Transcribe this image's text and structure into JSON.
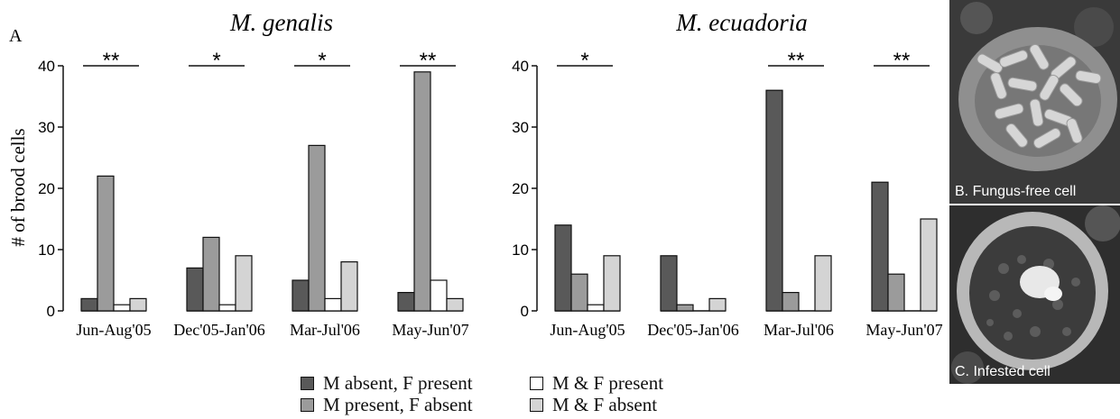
{
  "panel_label": "A",
  "ylabel": "# of brood cells",
  "colors": {
    "M absent, F present": "#595959",
    "M present, F absent": "#9b9b9b",
    "M & F present": "#ffffff",
    "M & F absent": "#d4d4d4"
  },
  "legend": [
    {
      "label": "M absent, F present",
      "color": "#595959"
    },
    {
      "label": "M present, F absent",
      "color": "#9b9b9b"
    },
    {
      "label": "M & F present",
      "color": "#ffffff"
    },
    {
      "label": "M & F absent",
      "color": "#d4d4d4"
    }
  ],
  "chart_data": [
    {
      "type": "bar",
      "title": "M. genalis",
      "ylabel": "# of brood cells",
      "ylim": [
        0,
        40
      ],
      "yticks": [
        0,
        10,
        20,
        30,
        40
      ],
      "categories": [
        "Jun-Aug'05",
        "Dec'05-Jan'06",
        "Mar-Jul'06",
        "May-Jun'07"
      ],
      "series": [
        {
          "name": "M absent, F present",
          "values": [
            2,
            7,
            5,
            3
          ]
        },
        {
          "name": "M present, F absent",
          "values": [
            22,
            12,
            27,
            39
          ]
        },
        {
          "name": "M & F present",
          "values": [
            1,
            1,
            2,
            5
          ]
        },
        {
          "name": "M & F absent",
          "values": [
            2,
            9,
            8,
            2
          ]
        }
      ],
      "significance": [
        "**",
        "*",
        "*",
        "**"
      ]
    },
    {
      "type": "bar",
      "title": "M. ecuadoria",
      "ylim": [
        0,
        40
      ],
      "yticks": [
        0,
        10,
        20,
        30,
        40
      ],
      "categories": [
        "Jun-Aug'05",
        "Dec'05-Jan'06",
        "Mar-Jul'06",
        "May-Jun'07"
      ],
      "series": [
        {
          "name": "M absent, F present",
          "values": [
            14,
            9,
            36,
            21
          ]
        },
        {
          "name": "M present, F absent",
          "values": [
            6,
            1,
            3,
            6
          ]
        },
        {
          "name": "M & F present",
          "values": [
            1,
            0,
            0,
            0
          ]
        },
        {
          "name": "M & F absent",
          "values": [
            9,
            2,
            9,
            15
          ]
        }
      ],
      "significance": [
        "*",
        "",
        "**",
        "**"
      ]
    }
  ],
  "photos": [
    {
      "caption": "B. Fungus-free cell",
      "icon": "brood-cell-larvae-photo"
    },
    {
      "caption": "C.  Infested cell",
      "icon": "infested-brood-cell-photo"
    }
  ]
}
